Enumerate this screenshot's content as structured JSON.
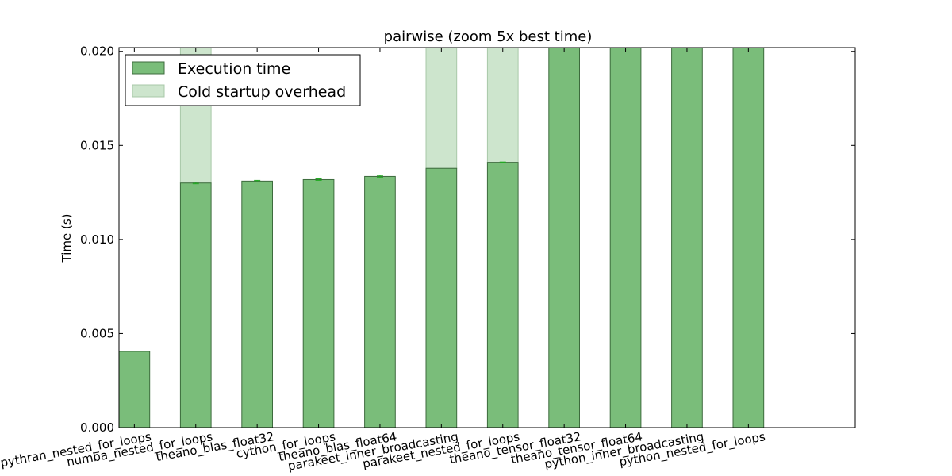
{
  "chart_data": {
    "type": "bar",
    "title": "pairwise (zoom 5x best time)",
    "xlabel": "",
    "ylabel": "Time (s)",
    "ylim": [
      0,
      0.0202
    ],
    "yticks": [
      0.0,
      0.005,
      0.01,
      0.015,
      0.02
    ],
    "ytick_labels": [
      "0.000",
      "0.005",
      "0.010",
      "0.015",
      "0.020"
    ],
    "grid": false,
    "legend_position": "top-left",
    "categories": [
      "pythran_nested_for_loops",
      "numba_nested_for_loops",
      "theano_blas_float32",
      "cython_for_loops",
      "theano_blas_float64",
      "parakeet_inner_broadcasting",
      "parakeet_nested_for_loops",
      "theano_tensor_float32",
      "theano_tensor_float64",
      "python_inner_broadcasting",
      "python_nested_for_loops"
    ],
    "series": [
      {
        "name": "Execution time",
        "color": "#7abd7a",
        "edge_color": "#3d6b3d",
        "values": [
          0.00405,
          0.013,
          0.0131,
          0.01318,
          0.01335,
          0.01378,
          0.0141,
          0.0202,
          0.0202,
          0.0202,
          0.0202
        ]
      },
      {
        "name": "Cold startup overhead",
        "color": "#cde5cd",
        "edge_color": "#a8c8a8",
        "values": [
          0,
          0.0072,
          0,
          0,
          0,
          0.0064,
          0.0061,
          0,
          0,
          0,
          0
        ]
      }
    ],
    "error_bars": [
      0,
      4e-05,
      4e-05,
      4e-05,
      5e-05,
      0,
      2e-05,
      0,
      0,
      0,
      0
    ]
  }
}
